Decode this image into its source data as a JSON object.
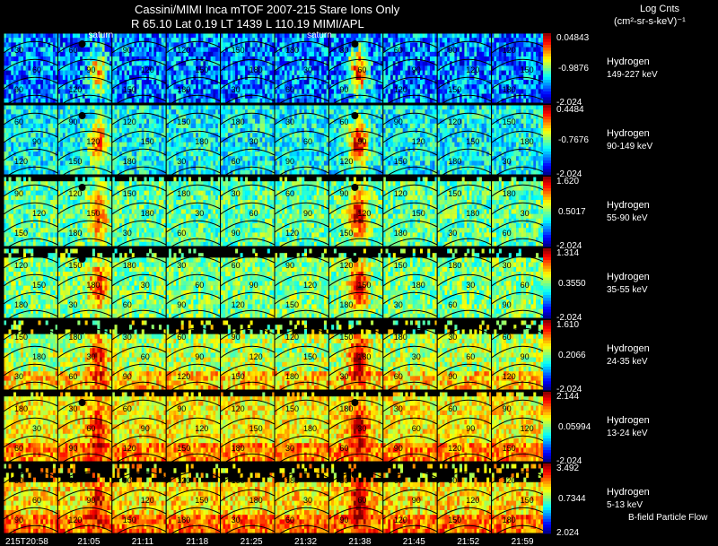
{
  "header": {
    "title": "Cassini/MIMI Inca mTOF  2007-215   Stare   Ions Only",
    "subtitle": "R       65.10 Lat 0.19 LT 1439 L       110.19   MIMI/APL",
    "units_line1": "Log Cnts",
    "units_line2": "(cm²-sr-s-keV)⁻¹"
  },
  "footer": {
    "flow_label": "B-field Particle Flow"
  },
  "colors": {
    "background": "#000000",
    "text": "#ffffff",
    "contour": "#000000"
  },
  "chart_data": {
    "type": "heatmap",
    "title": "Cassini/MIMI Inca mTOF 2007-215 Stare Ions Only",
    "time_labels": [
      "215T20:58",
      "21:05",
      "21:11",
      "21:18",
      "21:25",
      "21:32",
      "21:38",
      "21:45",
      "21:52",
      "21:59"
    ],
    "saturn_label": "saturn",
    "saturn_marked_frames": [
      1,
      5
    ],
    "contour_labels": [
      "30",
      "60",
      "90",
      "120",
      "150",
      "180"
    ],
    "rows": [
      {
        "species": "Hydrogen",
        "energy": "149-227 keV",
        "cmax": "0.04843",
        "cmid": "-0.9876",
        "cmin": "-2.024",
        "base": 0.25,
        "noise": 0.2,
        "blank_top": 0.03,
        "blob": 0.6
      },
      {
        "species": "Hydrogen",
        "energy": "90-149 keV",
        "cmax": "0.4484",
        "cmid": "-0.7676",
        "cmin": "-2.024",
        "base": 0.38,
        "noise": 0.15,
        "blank_top": 0.0,
        "blob": 0.55
      },
      {
        "species": "Hydrogen",
        "energy": "55-90 keV",
        "cmax": "1.620",
        "cmid": "0.5017",
        "cmin": "-2.024",
        "base": 0.47,
        "noise": 0.14,
        "blank_top": 0.1,
        "blob": 0.5
      },
      {
        "species": "Hydrogen",
        "energy": "35-55 keV",
        "cmax": "1.314",
        "cmid": "0.3550",
        "cmin": "-2.024",
        "base": 0.5,
        "noise": 0.14,
        "blank_top": 0.14,
        "blob": 0.48
      },
      {
        "species": "Hydrogen",
        "energy": "24-35 keV",
        "cmax": "1.610",
        "cmid": "0.2066",
        "cmin": "-2.024",
        "base": 0.55,
        "noise": 0.15,
        "blank_top": 0.22,
        "blob": 0.45
      },
      {
        "species": "Hydrogen",
        "energy": "13-24 keV",
        "cmax": "2.144",
        "cmid": "0.05994",
        "cmin": "-2.024",
        "base": 0.63,
        "noise": 0.13,
        "blank_top": 0.08,
        "blob": 0.36
      },
      {
        "species": "Hydrogen",
        "energy": "5-13 keV",
        "cmax": "3.492",
        "cmid": "0.7344",
        "cmin": "2.024",
        "base": 0.65,
        "noise": 0.14,
        "blank_top": 0.28,
        "blob": 0.33
      }
    ]
  }
}
